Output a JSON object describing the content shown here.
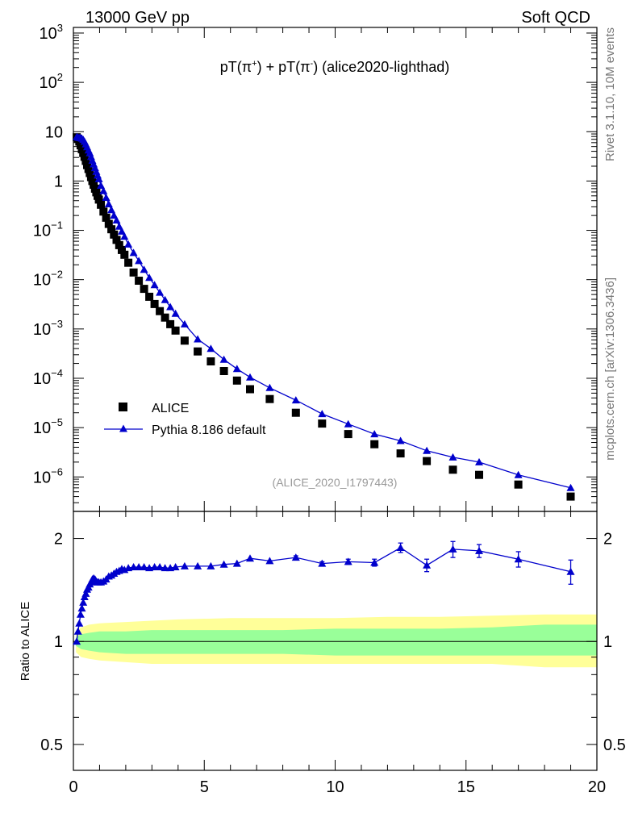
{
  "header": {
    "left": "13000 GeV pp",
    "right": "Soft QCD"
  },
  "side_labels": {
    "rivet": "Rivet 3.1.10,  10M events",
    "mcplots": "mcplots.cern.ch [arXiv:1306.3436]"
  },
  "analysis_id": "(ALICE_2020_I1797443)",
  "ratio_ylabel": "Ratio to ALICE",
  "colors": {
    "data": "#000000",
    "mc": "#0000cc",
    "band_inner": "#99ff99",
    "band_outer": "#ffff99"
  },
  "chart_data": [
    {
      "type": "scatter",
      "panel": "main",
      "title": "pT(π⁺) + pT(π⁻) (alice2020-lighthad)",
      "title_parts": {
        "a": "pT(π",
        "a_sup": "+",
        "b": ") + pT(π",
        "b_sup": "-",
        "c": ") (alice2020-lighthad)"
      },
      "yscale": "log",
      "xlim": [
        0,
        20
      ],
      "ylim": [
        2e-07,
        1300.0
      ],
      "yticks": [
        {
          "v": 1000.0,
          "base": "10",
          "exp": "3"
        },
        {
          "v": 100.0,
          "base": "10",
          "exp": "2"
        },
        {
          "v": 10,
          "base": "10",
          "exp": ""
        },
        {
          "v": 1,
          "base": "1",
          "exp": ""
        },
        {
          "v": 0.1,
          "base": "10",
          "exp": "−1"
        },
        {
          "v": 0.01,
          "base": "10",
          "exp": "−2"
        },
        {
          "v": 0.001,
          "base": "10",
          "exp": "−3"
        },
        {
          "v": 0.0001,
          "base": "10",
          "exp": "−4"
        },
        {
          "v": 1e-05,
          "base": "10",
          "exp": "−5"
        },
        {
          "v": 1e-06,
          "base": "10",
          "exp": "−6"
        }
      ],
      "legend": {
        "placement": "lower-left",
        "entries": [
          "ALICE",
          "Pythia 8.186 default"
        ]
      },
      "series": [
        {
          "name": "ALICE",
          "marker": "square",
          "x": [
            0.125,
            0.175,
            0.225,
            0.275,
            0.325,
            0.375,
            0.425,
            0.475,
            0.525,
            0.575,
            0.625,
            0.675,
            0.725,
            0.775,
            0.825,
            0.875,
            0.925,
            0.975,
            1.05,
            1.15,
            1.25,
            1.35,
            1.45,
            1.55,
            1.65,
            1.75,
            1.85,
            1.95,
            2.1,
            2.3,
            2.5,
            2.7,
            2.9,
            3.1,
            3.3,
            3.5,
            3.7,
            3.9,
            4.25,
            4.75,
            5.25,
            5.75,
            6.25,
            6.75,
            7.5,
            8.5,
            9.5,
            10.5,
            11.5,
            12.5,
            13.5,
            14.5,
            15.5,
            17.0,
            19.0
          ],
          "y": [
            7.7,
            7.2,
            6.3,
            5.3,
            4.4,
            3.7,
            3.1,
            2.55,
            2.1,
            1.75,
            1.45,
            1.2,
            1.0,
            0.84,
            0.7,
            0.59,
            0.5,
            0.42,
            0.33,
            0.24,
            0.18,
            0.135,
            0.105,
            0.082,
            0.064,
            0.05,
            0.04,
            0.032,
            0.022,
            0.014,
            0.0095,
            0.0065,
            0.0045,
            0.0032,
            0.0023,
            0.0017,
            0.00125,
            0.00093,
            0.00058,
            0.00035,
            0.00022,
            0.00014,
            9e-05,
            6e-05,
            3.8e-05,
            2e-05,
            1.21e-05,
            7.4e-06,
            4.6e-06,
            3e-06,
            2.1e-06,
            1.4e-06,
            1.1e-06,
            7e-07,
            4e-07
          ]
        },
        {
          "name": "Pythia 8.186 default",
          "marker": "triangle",
          "x": [
            0.125,
            0.175,
            0.225,
            0.275,
            0.325,
            0.375,
            0.425,
            0.475,
            0.525,
            0.575,
            0.625,
            0.675,
            0.725,
            0.775,
            0.825,
            0.875,
            0.925,
            0.975,
            1.05,
            1.15,
            1.25,
            1.35,
            1.45,
            1.55,
            1.65,
            1.75,
            1.85,
            1.95,
            2.1,
            2.3,
            2.5,
            2.7,
            2.9,
            3.1,
            3.3,
            3.5,
            3.7,
            3.9,
            4.25,
            4.75,
            5.25,
            5.75,
            6.25,
            6.75,
            7.5,
            8.5,
            9.5,
            10.5,
            11.5,
            12.5,
            13.5,
            14.5,
            15.5,
            17.0,
            19.0
          ],
          "y": [
            7.85,
            7.7,
            7.5,
            7.5,
            7.3,
            6.9,
            6.3,
            5.6,
            4.9,
            4.2,
            3.7,
            3.1,
            2.6,
            2.2,
            1.85,
            1.55,
            1.3,
            1.1,
            0.81,
            0.63,
            0.46,
            0.34,
            0.26,
            0.2,
            0.16,
            0.12,
            0.095,
            0.075,
            0.052,
            0.035,
            0.024,
            0.016,
            0.011,
            0.0078,
            0.0055,
            0.0039,
            0.0028,
            0.00205,
            0.00125,
            0.00062,
            0.0004,
            0.00024,
            0.000155,
            0.000105,
            6.4e-05,
            3.6e-05,
            1.9e-05,
            1.18e-05,
            7.4e-06,
            5.4e-06,
            3.4e-06,
            2.5e-06,
            2e-06,
            1.1e-06,
            6e-07
          ]
        }
      ]
    },
    {
      "type": "line",
      "panel": "ratio",
      "ylabel": "Ratio to ALICE",
      "yscale": "log",
      "xlim": [
        0,
        20
      ],
      "ylim": [
        0.42,
        2.4
      ],
      "yticks": [
        {
          "v": 2,
          "label": "2"
        },
        {
          "v": 1,
          "label": "1"
        },
        {
          "v": 0.5,
          "label": "0.5"
        }
      ],
      "xticks": [
        {
          "v": 0,
          "label": "0"
        },
        {
          "v": 5,
          "label": "5"
        },
        {
          "v": 10,
          "label": "10"
        },
        {
          "v": 15,
          "label": "15"
        },
        {
          "v": 20,
          "label": "20"
        }
      ],
      "series": [
        {
          "name": "Pythia 8.186 default / ALICE",
          "x": [
            0.125,
            0.175,
            0.225,
            0.275,
            0.325,
            0.375,
            0.425,
            0.475,
            0.525,
            0.575,
            0.625,
            0.675,
            0.725,
            0.775,
            0.825,
            0.875,
            0.925,
            0.975,
            1.05,
            1.15,
            1.25,
            1.35,
            1.45,
            1.55,
            1.65,
            1.75,
            1.85,
            1.95,
            2.1,
            2.3,
            2.5,
            2.7,
            2.9,
            3.1,
            3.3,
            3.5,
            3.7,
            3.9,
            4.25,
            4.75,
            5.25,
            5.75,
            6.25,
            6.75,
            7.5,
            8.5,
            9.5,
            10.5,
            11.5,
            12.5,
            13.5,
            14.5,
            15.5,
            17.0,
            19.0
          ],
          "y": [
            1.0,
            1.07,
            1.13,
            1.2,
            1.25,
            1.3,
            1.35,
            1.38,
            1.42,
            1.44,
            1.47,
            1.49,
            1.52,
            1.53,
            1.52,
            1.5,
            1.49,
            1.49,
            1.49,
            1.5,
            1.52,
            1.55,
            1.56,
            1.58,
            1.6,
            1.61,
            1.63,
            1.62,
            1.64,
            1.65,
            1.65,
            1.65,
            1.64,
            1.65,
            1.65,
            1.64,
            1.64,
            1.65,
            1.66,
            1.66,
            1.66,
            1.68,
            1.69,
            1.75,
            1.72,
            1.76,
            1.69,
            1.71,
            1.7,
            1.88,
            1.67,
            1.86,
            1.84,
            1.74,
            1.6
          ],
          "yerr": [
            0,
            0,
            0,
            0,
            0,
            0,
            0,
            0,
            0,
            0,
            0,
            0,
            0,
            0,
            0,
            0,
            0,
            0,
            0,
            0,
            0,
            0,
            0,
            0,
            0,
            0,
            0,
            0,
            0,
            0,
            0,
            0,
            0,
            0,
            0,
            0,
            0,
            0,
            0,
            0,
            0,
            0,
            0,
            0,
            0,
            0.02,
            0.02,
            0.03,
            0.04,
            0.06,
            0.07,
            0.1,
            0.08,
            0.09,
            0.13
          ]
        },
        {
          "name": "ALICE uncertainty band",
          "x": [
            0.1,
            0.3,
            0.6,
            1.0,
            2.0,
            3.0,
            4.0,
            6.0,
            8.0,
            10.0,
            12.0,
            14.0,
            16.0,
            18.0,
            20.0
          ],
          "inner_lo": [
            0.97,
            0.95,
            0.94,
            0.93,
            0.92,
            0.92,
            0.92,
            0.92,
            0.92,
            0.91,
            0.91,
            0.91,
            0.91,
            0.91,
            0.91
          ],
          "inner_hi": [
            1.03,
            1.05,
            1.06,
            1.07,
            1.07,
            1.08,
            1.08,
            1.08,
            1.08,
            1.09,
            1.09,
            1.09,
            1.1,
            1.12,
            1.12
          ],
          "outer_lo": [
            0.93,
            0.9,
            0.89,
            0.88,
            0.87,
            0.86,
            0.86,
            0.86,
            0.86,
            0.86,
            0.86,
            0.86,
            0.86,
            0.84,
            0.84
          ],
          "outer_hi": [
            1.07,
            1.1,
            1.12,
            1.13,
            1.14,
            1.15,
            1.16,
            1.17,
            1.17,
            1.17,
            1.18,
            1.18,
            1.19,
            1.2,
            1.2
          ]
        }
      ]
    }
  ]
}
